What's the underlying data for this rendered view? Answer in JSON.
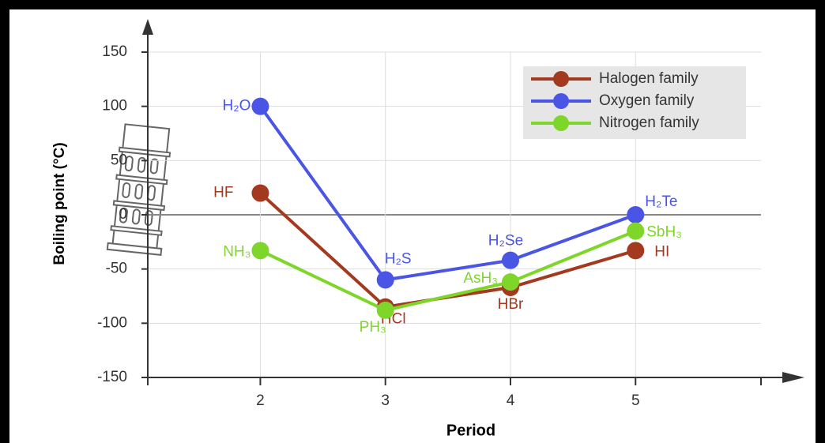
{
  "chart_data": {
    "type": "line",
    "x_label": "Period",
    "y_label": "Boiling point (°C)",
    "x": [
      2,
      3,
      4,
      5
    ],
    "xlim": [
      1.1,
      6.3
    ],
    "xticks": [
      2,
      3,
      4,
      5
    ],
    "ylim": [
      -150,
      150
    ],
    "yticks": [
      -150,
      -100,
      -50,
      0,
      50,
      100,
      150
    ],
    "grid": true,
    "legend": "upper right",
    "series": [
      {
        "name": "Halogen family",
        "color": "#a3391f",
        "values": [
          20,
          -85,
          -67,
          -33
        ],
        "labels": [
          "HF",
          "HCl",
          "HBr",
          "HI"
        ]
      },
      {
        "name": "Oxygen family",
        "color": "#4a55e6",
        "values": [
          100,
          -60,
          -42,
          0
        ],
        "labels": [
          "H₂O",
          "H₂S",
          "H₂Se",
          "H₂Te"
        ]
      },
      {
        "name": "Nitrogen family",
        "color": "#7fd62a",
        "values": [
          -33,
          -88,
          -62,
          -15
        ],
        "labels": [
          "NH₃",
          "PH₃",
          "AsH₃",
          "SbH₃"
        ]
      }
    ]
  }
}
